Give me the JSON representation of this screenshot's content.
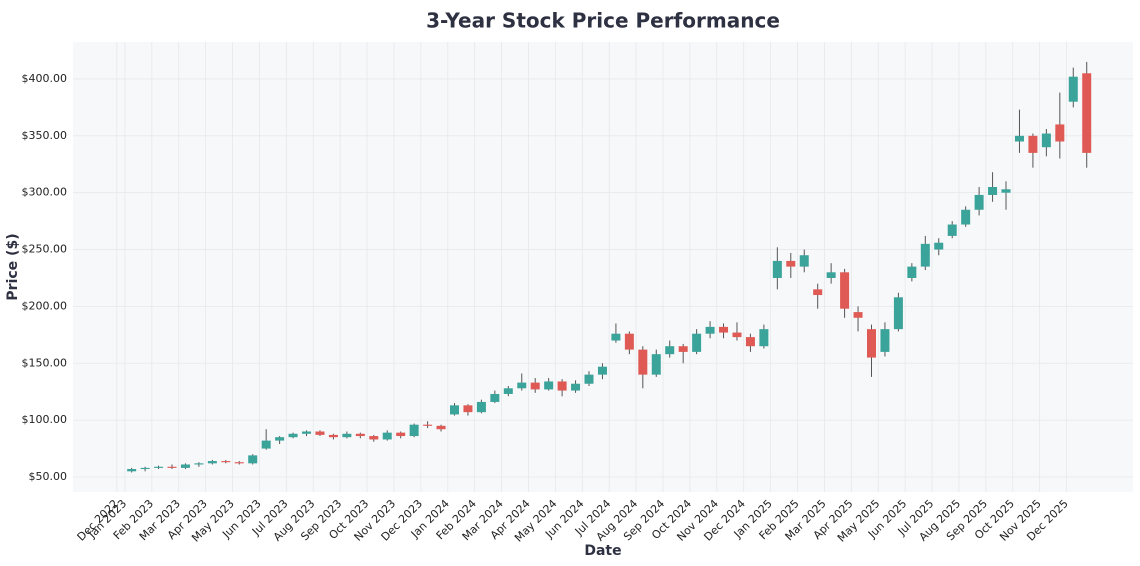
{
  "chart_data": {
    "type": "candlestick",
    "title": "3-Year Stock Price Performance",
    "x_label": "Date",
    "y_label": "Price ($)",
    "x": [
      0.25,
      0.75,
      1.25,
      1.75,
      2.25,
      2.75,
      3.25,
      3.75,
      4.25,
      4.75,
      5.25,
      5.75,
      6.25,
      6.75,
      7.25,
      7.75,
      8.25,
      8.75,
      9.25,
      9.75,
      10.25,
      10.75,
      11.25,
      11.75,
      12.25,
      12.75,
      13.25,
      13.75,
      14.25,
      14.75,
      15.25,
      15.75,
      16.25,
      16.75,
      17.25,
      17.75,
      18.25,
      18.75,
      19.25,
      19.75,
      20.25,
      20.75,
      21.25,
      21.75,
      22.25,
      22.75,
      23.25,
      23.75,
      24.25,
      24.75,
      25.25,
      25.75,
      26.25,
      26.75,
      27.25,
      27.75,
      28.25,
      28.75,
      29.25,
      29.75,
      30.25,
      30.75,
      31.25,
      31.75,
      32.25,
      32.75,
      33.25,
      33.75,
      34.25,
      34.75,
      35.25,
      35.75
    ],
    "open": [
      55,
      57,
      58,
      59,
      58,
      61,
      62,
      64,
      63,
      62,
      75,
      82,
      85,
      88,
      90,
      87,
      85,
      88,
      86,
      83,
      89,
      86,
      96,
      95,
      105,
      113,
      107,
      116,
      123,
      128,
      133,
      127,
      134,
      126,
      132,
      140,
      170,
      176,
      162,
      140,
      158,
      165,
      160,
      176,
      182,
      177,
      173,
      165,
      225,
      240,
      235,
      215,
      225,
      230,
      195,
      180,
      160,
      180,
      225,
      235,
      250,
      262,
      272,
      285,
      298,
      300,
      345,
      350,
      340,
      360,
      380,
      405
    ],
    "high": [
      58,
      59,
      60,
      61,
      62,
      63,
      65,
      65,
      64,
      70,
      92,
      86,
      89,
      91,
      91,
      88,
      90,
      89,
      87,
      91,
      90,
      97,
      99,
      96,
      115,
      114,
      118,
      126,
      130,
      141,
      137,
      137,
      136,
      135,
      143,
      150,
      185,
      178,
      165,
      162,
      170,
      167,
      180,
      187,
      185,
      186,
      176,
      184,
      252,
      247,
      250,
      220,
      238,
      233,
      200,
      184,
      186,
      212,
      238,
      262,
      260,
      275,
      288,
      305,
      318,
      310,
      373,
      352,
      356,
      388,
      410,
      415
    ],
    "low": [
      54,
      55,
      57,
      57,
      57,
      59,
      61,
      62,
      61,
      61,
      74,
      79,
      84,
      86,
      86,
      83,
      84,
      84,
      81,
      82,
      84,
      85,
      93,
      90,
      104,
      104,
      106,
      115,
      121,
      126,
      124,
      126,
      121,
      124,
      130,
      136,
      168,
      158,
      128,
      138,
      155,
      150,
      158,
      172,
      172,
      170,
      160,
      163,
      215,
      225,
      230,
      198,
      220,
      190,
      178,
      138,
      156,
      178,
      222,
      232,
      245,
      260,
      270,
      280,
      292,
      285,
      335,
      322,
      332,
      330,
      375,
      322
    ],
    "close": [
      57,
      58,
      59,
      58,
      61,
      62,
      64,
      63,
      62,
      69,
      82,
      85,
      88,
      90,
      87,
      85,
      88,
      86,
      83,
      89,
      86,
      96,
      95,
      92,
      113,
      107,
      116,
      123,
      128,
      133,
      127,
      134,
      126,
      132,
      140,
      147,
      176,
      162,
      140,
      158,
      165,
      160,
      176,
      182,
      177,
      173,
      165,
      180,
      240,
      235,
      245,
      210,
      230,
      198,
      190,
      155,
      180,
      208,
      235,
      255,
      256,
      272,
      285,
      298,
      305,
      303,
      350,
      335,
      352,
      345,
      402,
      335
    ],
    "up_color": "#3aa39a",
    "down_color": "#e05a55",
    "xlim": [
      -1.93,
      37.47
    ],
    "ylim": [
      36.8,
      432.5
    ],
    "xticks": [
      {
        "value": -0.3,
        "label": "Dec 2022"
      },
      {
        "value": 0,
        "label": "Jan 2023"
      },
      {
        "value": 1,
        "label": "Feb 2023"
      },
      {
        "value": 2,
        "label": "Mar 2023"
      },
      {
        "value": 3,
        "label": "Apr 2023"
      },
      {
        "value": 4,
        "label": "May 2023"
      },
      {
        "value": 5,
        "label": "Jun 2023"
      },
      {
        "value": 6,
        "label": "Jul 2023"
      },
      {
        "value": 7,
        "label": "Aug 2023"
      },
      {
        "value": 8,
        "label": "Sep 2023"
      },
      {
        "value": 9,
        "label": "Oct 2023"
      },
      {
        "value": 10,
        "label": "Nov 2023"
      },
      {
        "value": 11,
        "label": "Dec 2023"
      },
      {
        "value": 12,
        "label": "Jan 2024"
      },
      {
        "value": 13,
        "label": "Feb 2024"
      },
      {
        "value": 14,
        "label": "Mar 2024"
      },
      {
        "value": 15,
        "label": "Apr 2024"
      },
      {
        "value": 16,
        "label": "May 2024"
      },
      {
        "value": 17,
        "label": "Jun 2024"
      },
      {
        "value": 18,
        "label": "Jul 2024"
      },
      {
        "value": 19,
        "label": "Aug 2024"
      },
      {
        "value": 20,
        "label": "Sep 2024"
      },
      {
        "value": 21,
        "label": "Oct 2024"
      },
      {
        "value": 22,
        "label": "Nov 2024"
      },
      {
        "value": 23,
        "label": "Dec 2024"
      },
      {
        "value": 24,
        "label": "Jan 2025"
      },
      {
        "value": 25,
        "label": "Feb 2025"
      },
      {
        "value": 26,
        "label": "Mar 2025"
      },
      {
        "value": 27,
        "label": "Apr 2025"
      },
      {
        "value": 28,
        "label": "May 2025"
      },
      {
        "value": 29,
        "label": "Jun 2025"
      },
      {
        "value": 30,
        "label": "Jul 2025"
      },
      {
        "value": 31,
        "label": "Aug 2025"
      },
      {
        "value": 32,
        "label": "Sep 2025"
      },
      {
        "value": 33,
        "label": "Oct 2025"
      },
      {
        "value": 34,
        "label": "Nov 2025"
      },
      {
        "value": 35,
        "label": "Dec 2025"
      }
    ],
    "yticks": [
      {
        "value": 50,
        "label": "$50.00"
      },
      {
        "value": 100,
        "label": "$100.00"
      },
      {
        "value": 150,
        "label": "$150.00"
      },
      {
        "value": 200,
        "label": "$200.00"
      },
      {
        "value": 250,
        "label": "$250.00"
      },
      {
        "value": 300,
        "label": "$300.00"
      },
      {
        "value": 350,
        "label": "$350.00"
      },
      {
        "value": 400,
        "label": "$400.00"
      }
    ],
    "grid": true
  }
}
